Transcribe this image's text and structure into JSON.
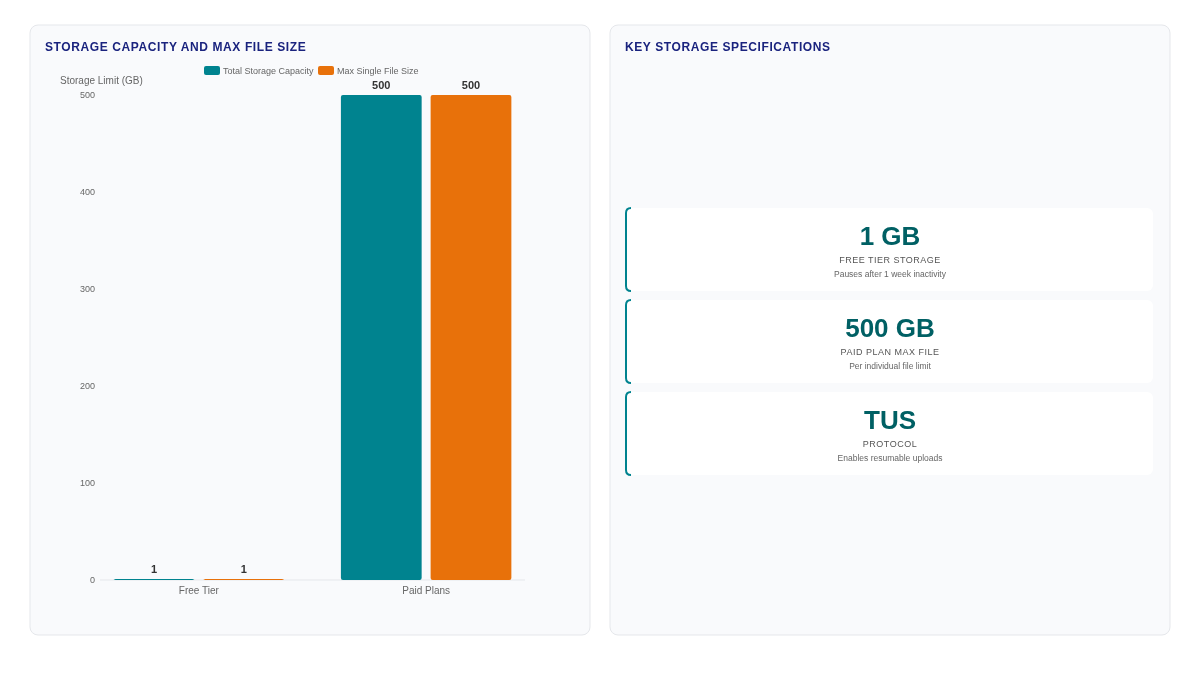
{
  "chart_data": [
    {
      "type": "bar",
      "title": "STORAGE CAPACITY AND MAX FILE SIZE",
      "ylabel": "Storage Limit (GB)",
      "categories": [
        "Free Tier",
        "Paid Plans"
      ],
      "series": [
        {
          "name": "Total Storage Capacity",
          "color": "#00838f",
          "values": [
            1,
            500
          ]
        },
        {
          "name": "Max Single File Size",
          "color": "#e8710a",
          "values": [
            1,
            500
          ]
        }
      ],
      "ylim": [
        0,
        500
      ],
      "yticks": [
        0,
        100,
        200,
        300,
        400,
        500
      ],
      "data_labels": true,
      "legend": "top",
      "grid": false
    },
    {
      "type": "other",
      "title": "KEY STORAGE SPECIFICATIONS",
      "annotations": [
        "1 GB",
        "FREE TIER STORAGE",
        "Pauses after 1 week inactivity",
        "500 GB",
        "PAID PLAN MAX FILE",
        "Per individual file limit",
        "TUS",
        "PROTOCOL",
        "Enables resumable uploads"
      ]
    }
  ]
}
